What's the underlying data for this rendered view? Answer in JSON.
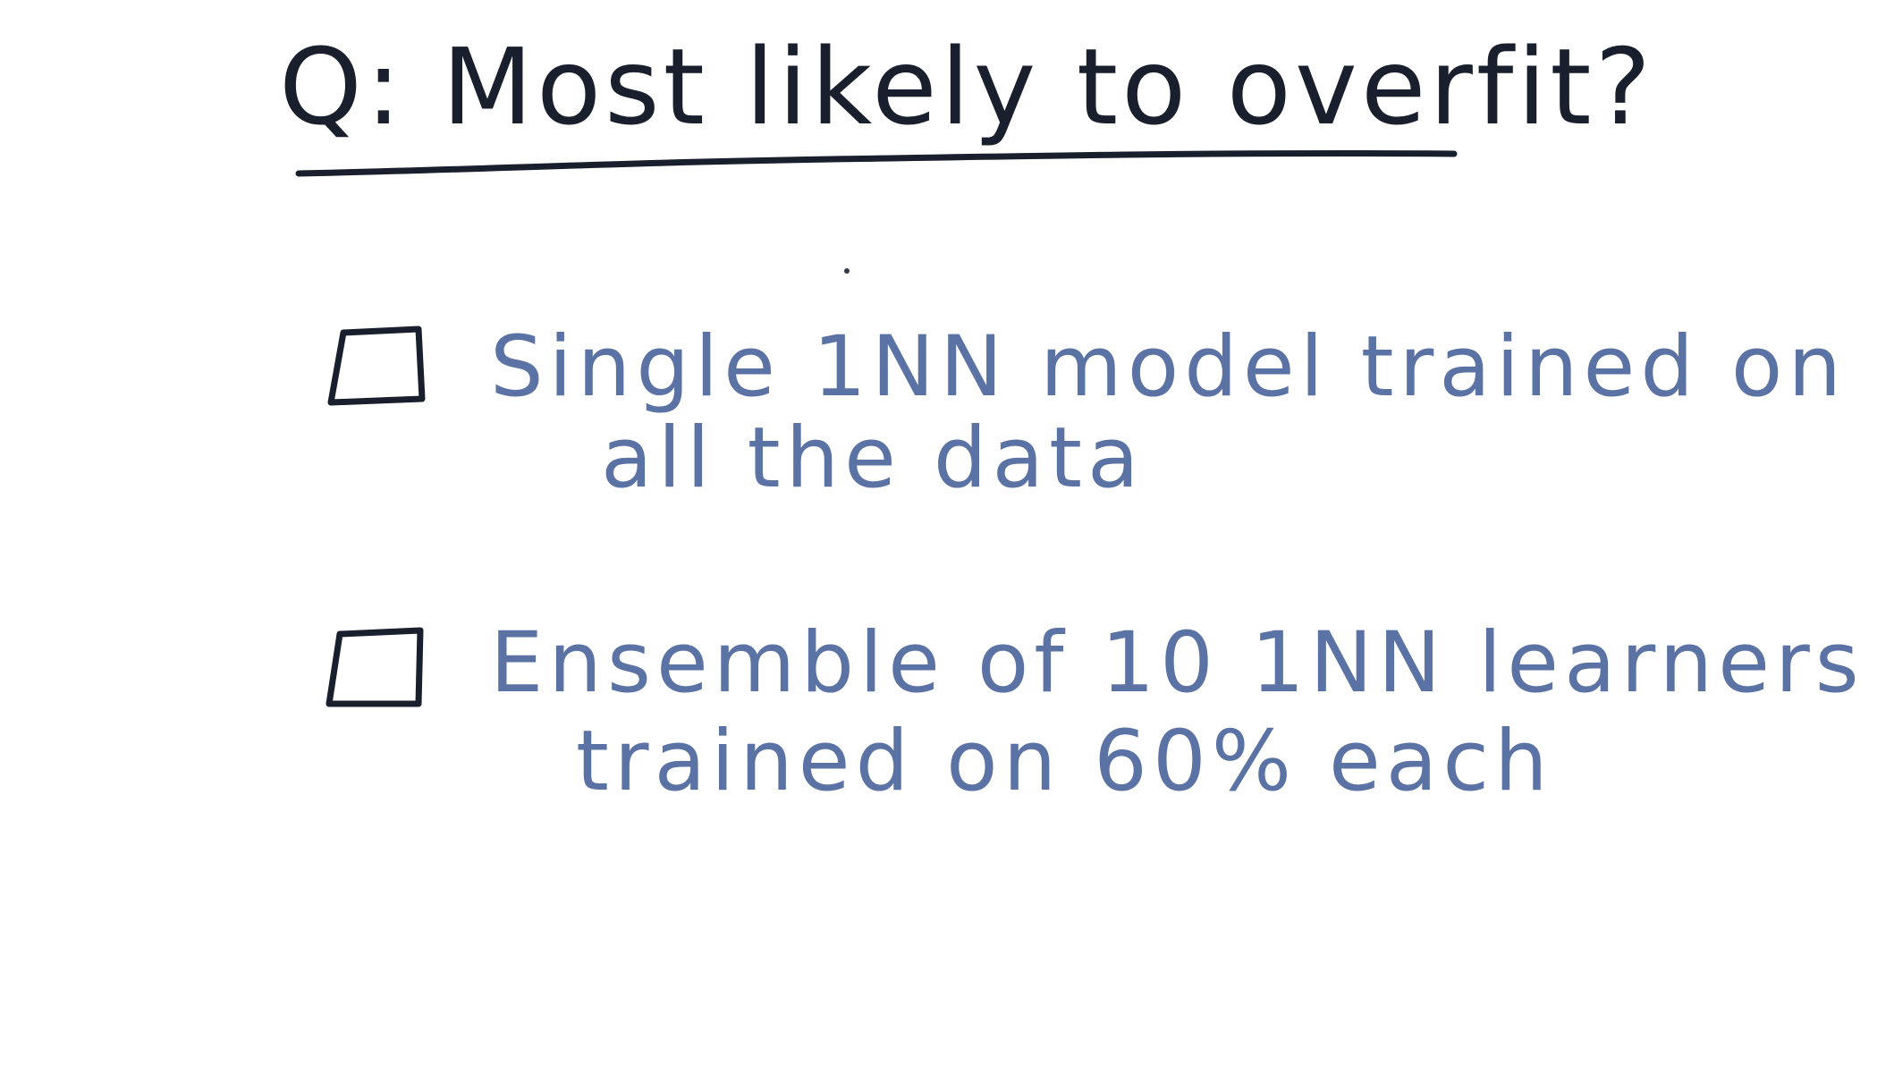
{
  "question": {
    "title": "Q: Most likely to overfit?"
  },
  "options": [
    {
      "line1": "Single 1NN model trained on",
      "line2": "all the data",
      "checked": false
    },
    {
      "line1": "Ensemble of 10 1NN learners",
      "line2": "trained on 60% each",
      "checked": false
    }
  ],
  "colors": {
    "background": "#ffffff",
    "question_ink": "#1a1f2e",
    "answer_ink": "#5b73a4"
  }
}
